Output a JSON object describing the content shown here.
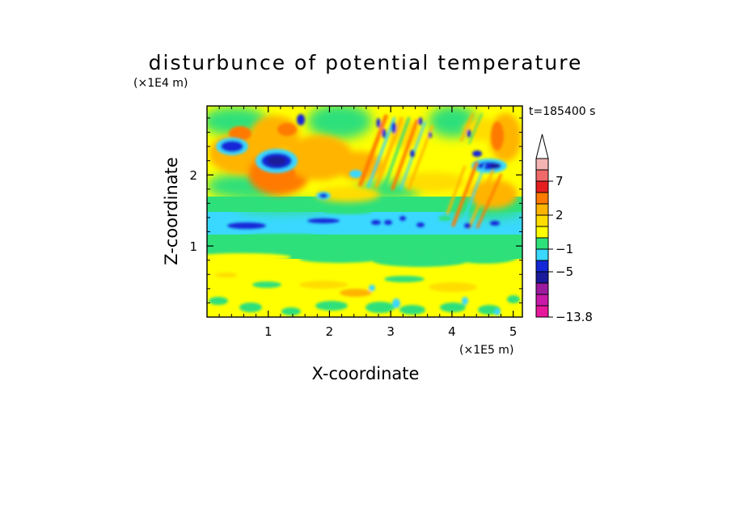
{
  "chart_data": {
    "type": "heatmap",
    "title": "disturbunce of potential temperature",
    "xlabel": "X-coordinate",
    "ylabel": "Z-coordinate",
    "x_scale_label": "(×1E5 m)",
    "y_scale_label": "(×1E4 m)",
    "time_label": "t=185400  s",
    "xlim": [
      0,
      5.15
    ],
    "ylim": [
      0,
      2.97
    ],
    "x_ticks": [
      {
        "value": 1,
        "label": "1"
      },
      {
        "value": 2,
        "label": "2"
      },
      {
        "value": 3,
        "label": "3"
      },
      {
        "value": 4,
        "label": "4"
      },
      {
        "value": 5,
        "label": "5"
      }
    ],
    "y_ticks": [
      {
        "value": 1,
        "label": "1"
      },
      {
        "value": 2,
        "label": "2"
      }
    ],
    "colorbar": {
      "levels": [
        -13.8,
        -11,
        -9,
        -7,
        -5,
        -3,
        -1,
        0,
        1,
        2,
        3,
        5,
        7,
        9,
        11
      ],
      "labels": [
        {
          "value": -13.8,
          "label": "−13.8"
        },
        {
          "value": -5,
          "label": "−5"
        },
        {
          "value": -1,
          "label": "−1"
        },
        {
          "value": 2,
          "label": "2"
        },
        {
          "value": 7,
          "label": "7"
        }
      ],
      "colors": [
        "#e8189c",
        "#c81aa8",
        "#9b1a9e",
        "#1a1a9a",
        "#1428d8",
        "#3ad8ff",
        "#2ee07a",
        "#ffff00",
        "#ffdd00",
        "#ffb400",
        "#ff7a00",
        "#e61e1e",
        "#f06a6a",
        "#f5b4b4"
      ],
      "extend": "max"
    },
    "features": [
      {
        "x": 0.42,
        "z": 2.45,
        "v": -3
      },
      {
        "x": 1.1,
        "z": 2.2,
        "v": -5
      },
      {
        "x": 0.75,
        "z": 2.18,
        "v": 3
      },
      {
        "x": 0.45,
        "z": 1.95,
        "v": 2
      },
      {
        "x": 1.45,
        "z": 2.7,
        "v": 2
      },
      {
        "x": 1.55,
        "z": 2.1,
        "v": 2
      },
      {
        "x": 1.9,
        "z": 1.75,
        "v": -1
      },
      {
        "x": 2.05,
        "z": 2.4,
        "v": 3
      },
      {
        "x": 2.6,
        "z": 2.55,
        "v": 3
      },
      {
        "x": 2.9,
        "z": 2.7,
        "v": -3
      },
      {
        "x": 3.1,
        "z": 2.3,
        "v": 2
      },
      {
        "x": 4.5,
        "z": 2.15,
        "v": -5
      },
      {
        "x": 4.35,
        "z": 1.75,
        "v": 3
      },
      {
        "x": 4.9,
        "z": 2.55,
        "v": 3
      },
      {
        "x": 0.65,
        "z": 1.28,
        "v": -3
      },
      {
        "x": 2.3,
        "z": 1.35,
        "v": -3
      },
      {
        "x": 3.3,
        "z": 1.32,
        "v": -3
      },
      {
        "x": 4.1,
        "z": 1.3,
        "v": -3
      }
    ]
  }
}
